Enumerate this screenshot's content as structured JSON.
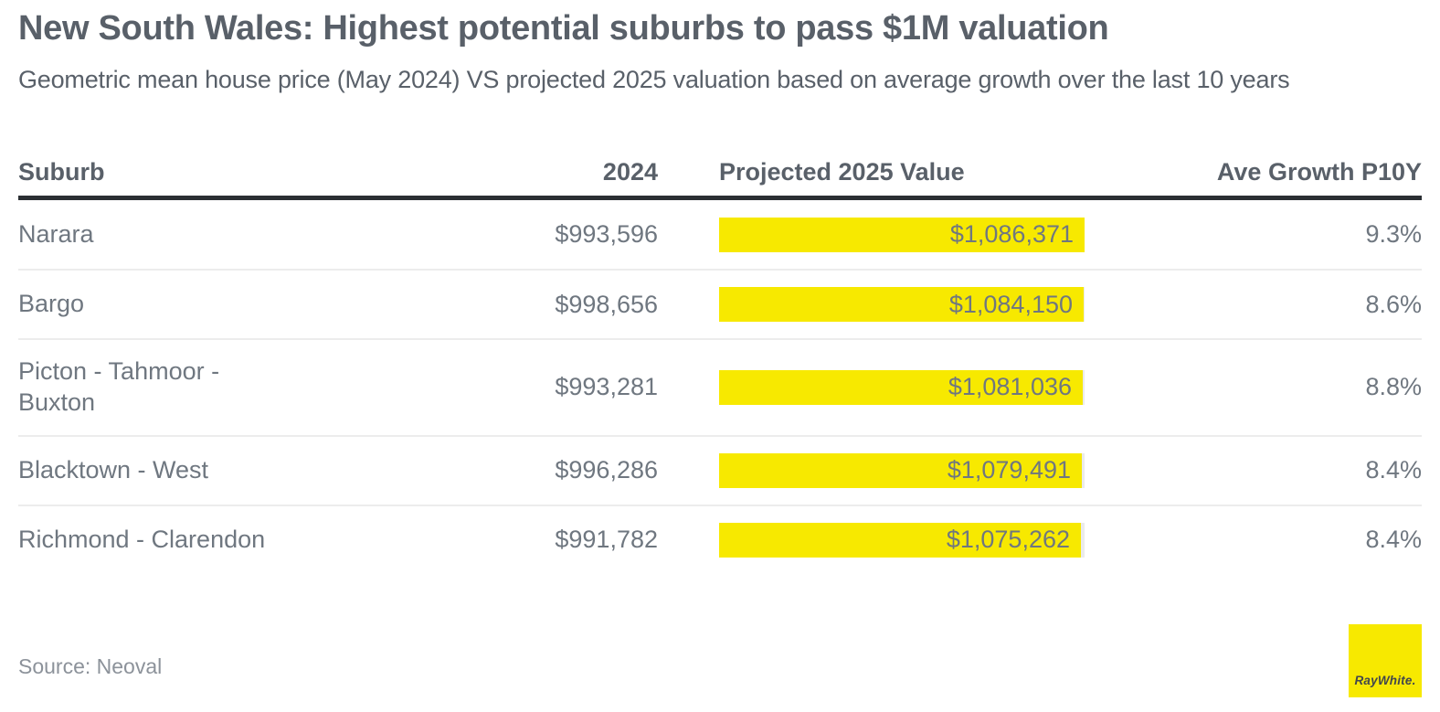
{
  "page": {
    "title": "New South Wales: Highest potential suburbs to pass $1M valuation",
    "subtitle": "Geometric mean house price (May 2024) VS projected 2025 valuation based on average growth over the last 10 years"
  },
  "table": {
    "columns": {
      "suburb": "Suburb",
      "year2024": "2024",
      "projected": "Projected 2025 Value",
      "growth": "Ave Growth P10Y"
    },
    "rows": [
      {
        "suburb": "Narara",
        "price2024": "$993,596",
        "projected": 1086371,
        "projectedLabel": "$1,086,371",
        "growth": "9.3%"
      },
      {
        "suburb": "Bargo",
        "price2024": "$998,656",
        "projected": 1084150,
        "projectedLabel": "$1,084,150",
        "growth": "8.6%"
      },
      {
        "suburb": "Picton - Tahmoor -\nBuxton",
        "price2024": "$993,281",
        "projected": 1081036,
        "projectedLabel": "$1,081,036",
        "growth": "8.8%"
      },
      {
        "suburb": "Blacktown - West",
        "price2024": "$996,286",
        "projected": 1079491,
        "projectedLabel": "$1,079,491",
        "growth": "8.4%"
      },
      {
        "suburb": "Richmond - Clarendon",
        "price2024": "$991,782",
        "projected": 1075262,
        "projectedLabel": "$1,075,262",
        "growth": "8.4%"
      }
    ],
    "bar": {
      "maxValue": 1086371,
      "maxWidthPx": 400
    }
  },
  "footer": {
    "source": "Source: Neoval",
    "logoText": "RayWhite."
  },
  "colors": {
    "accentYellow": "#F7E900",
    "headingGray": "#596069",
    "bodyGray": "#6F7780",
    "ruleDark": "#2B2F33",
    "dividerGray": "#ECECEC",
    "trackGray": "#EBEBEB"
  },
  "chart_data": {
    "type": "bar",
    "title": "New South Wales: Highest potential suburbs to pass $1M valuation",
    "subtitle": "Geometric mean house price (May 2024) VS projected 2025 valuation based on average growth over the last 10 years",
    "categories": [
      "Narara",
      "Bargo",
      "Picton - Tahmoor - Buxton",
      "Blacktown - West",
      "Richmond - Clarendon"
    ],
    "series": [
      {
        "name": "2024",
        "values": [
          993596,
          998656,
          993281,
          996286,
          991782
        ]
      },
      {
        "name": "Projected 2025 Value",
        "values": [
          1086371,
          1084150,
          1081036,
          1079491,
          1075262
        ]
      },
      {
        "name": "Ave Growth P10Y (%)",
        "values": [
          9.3,
          8.6,
          8.8,
          8.4,
          8.4
        ]
      }
    ],
    "orientation": "horizontal",
    "bar_color": "#F7E900",
    "legend_position": "none",
    "grid": false,
    "source": "Source: Neoval",
    "brand": "Ray White"
  }
}
